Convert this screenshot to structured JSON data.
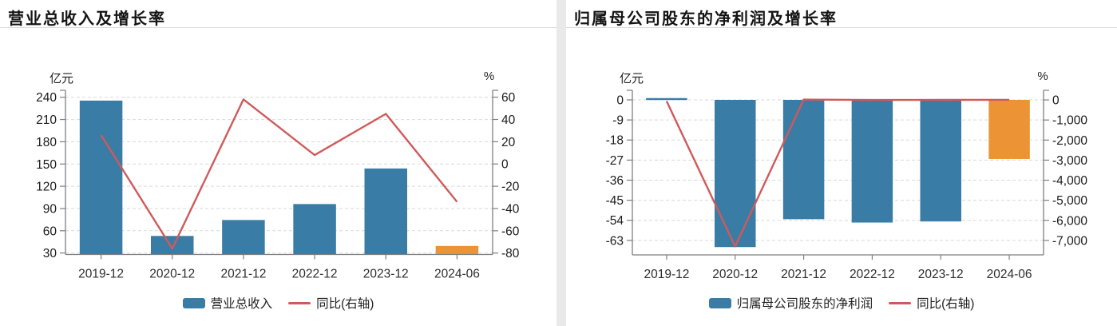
{
  "colors": {
    "bar_blue": "#397CA6",
    "bar_orange": "#EC9435",
    "line_red": "#D05A5A",
    "divider_gray": "#e9e9e9",
    "gridline": "#d9d9d9",
    "axis": "#7f7f7f"
  },
  "chart_data": [
    {
      "type": "bar+line",
      "title": "营业总收入及增长率",
      "categories": [
        "2019-12",
        "2020-12",
        "2021-12",
        "2022-12",
        "2023-12",
        "2024-06"
      ],
      "series": [
        {
          "name": "营业总收入",
          "type": "bar",
          "axis": "left",
          "unit": "亿元",
          "values": [
            235.5,
            53,
            74.5,
            96,
            144,
            39.5
          ],
          "colors": [
            "#397CA6",
            "#397CA6",
            "#397CA6",
            "#397CA6",
            "#397CA6",
            "#EC9435"
          ]
        },
        {
          "name": "同比(右轴)",
          "type": "line",
          "axis": "right",
          "unit": "%",
          "color": "#D05A5A",
          "values": [
            26,
            -76,
            58,
            8,
            45,
            -34
          ]
        }
      ],
      "left_axis": {
        "label": "亿元",
        "range": [
          28,
          249.4
        ],
        "ticks": [
          {
            "value": 240,
            "label": "240"
          },
          {
            "value": 210,
            "label": "210"
          },
          {
            "value": 180,
            "label": "180"
          },
          {
            "value": 150,
            "label": "150"
          },
          {
            "value": 120,
            "label": "120"
          },
          {
            "value": 90,
            "label": "90"
          },
          {
            "value": 60,
            "label": "60"
          },
          {
            "value": 30,
            "label": "30"
          }
        ]
      },
      "right_axis": {
        "label": "%",
        "range": [
          -81.3,
          66.2
        ],
        "ticks": [
          {
            "value": 60,
            "label": "60"
          },
          {
            "value": 40,
            "label": "40"
          },
          {
            "value": 20,
            "label": "20"
          },
          {
            "value": 0,
            "label": "0"
          },
          {
            "value": -20,
            "label": "-20"
          },
          {
            "value": -40,
            "label": "-40"
          },
          {
            "value": -60,
            "label": "-60"
          },
          {
            "value": -80,
            "label": "-80"
          }
        ]
      },
      "grid": true,
      "legend_position": "bottom"
    },
    {
      "type": "bar+line",
      "title": "归属母公司股东的净利润及增长率",
      "categories": [
        "2019-12",
        "2020-12",
        "2021-12",
        "2022-12",
        "2023-12",
        "2024-06"
      ],
      "series": [
        {
          "name": "归属母公司股东的净利润",
          "type": "bar",
          "axis": "left",
          "unit": "亿元",
          "values": [
            0.8,
            -66,
            -53.5,
            -55,
            -54.5,
            -26.5
          ],
          "colors": [
            "#397CA6",
            "#397CA6",
            "#397CA6",
            "#397CA6",
            "#397CA6",
            "#EC9435"
          ]
        },
        {
          "name": "同比(右轴)",
          "type": "line",
          "axis": "right",
          "unit": "%",
          "color": "#D05A5A",
          "values": [
            -60,
            -7300,
            19,
            -3,
            1,
            8
          ]
        }
      ],
      "left_axis": {
        "label": "亿元",
        "range": [
          -69.5,
          4.3
        ],
        "ticks": [
          {
            "value": 0,
            "label": "0"
          },
          {
            "value": -9,
            "label": "-9"
          },
          {
            "value": -18,
            "label": "-18"
          },
          {
            "value": -27,
            "label": "-27"
          },
          {
            "value": -36,
            "label": "-36"
          },
          {
            "value": -45,
            "label": "-45"
          },
          {
            "value": -54,
            "label": "-54"
          },
          {
            "value": -63,
            "label": "-63"
          }
        ]
      },
      "right_axis": {
        "label": "%",
        "range": [
          -7720,
          480
        ],
        "ticks": [
          {
            "value": 0,
            "label": "0"
          },
          {
            "value": -1000,
            "label": "-1,000"
          },
          {
            "value": -2000,
            "label": "-2,000"
          },
          {
            "value": -3000,
            "label": "-3,000"
          },
          {
            "value": -4000,
            "label": "-4,000"
          },
          {
            "value": -5000,
            "label": "-5,000"
          },
          {
            "value": -6000,
            "label": "-6,000"
          },
          {
            "value": -7000,
            "label": "-7,000"
          }
        ]
      },
      "grid": true,
      "legend_position": "bottom"
    }
  ]
}
